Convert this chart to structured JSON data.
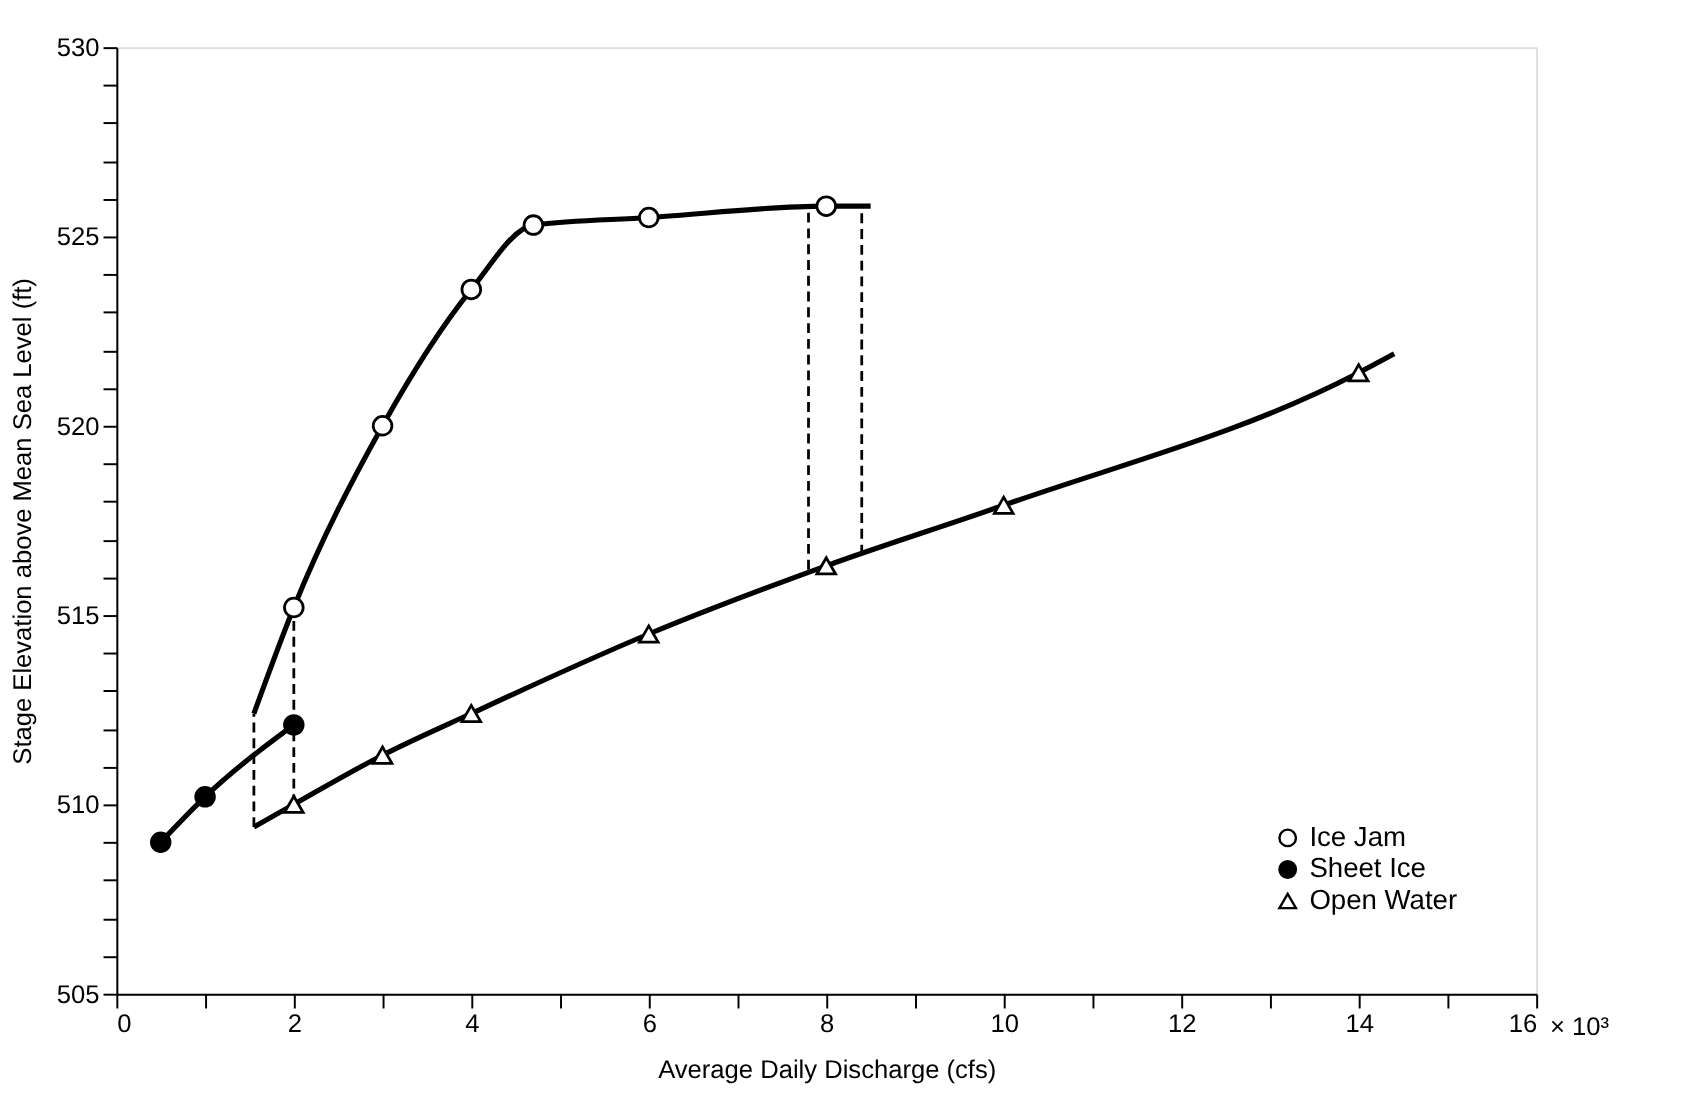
{
  "chart_data": {
    "type": "scatter",
    "xlabel": "Average Daily Discharge (cfs)",
    "ylabel": "Stage Elevation above Mean Sea Level (ft)",
    "xlim": [
      0,
      16
    ],
    "ylim": [
      505,
      530
    ],
    "xticks": [
      0,
      {
        "value": 1,
        "label": null
      },
      2,
      {
        "value": 3,
        "label": null
      },
      4,
      {
        "value": 5,
        "label": null
      },
      6,
      {
        "value": 7,
        "label": null
      },
      8,
      {
        "value": 9,
        "label": null
      },
      10,
      {
        "value": 11,
        "label": null
      },
      12,
      {
        "value": 13,
        "label": null
      },
      14,
      {
        "value": 15,
        "label": null
      },
      16
    ],
    "yticks": [
      505,
      {
        "value": 506,
        "label": null
      },
      {
        "value": 507,
        "label": null
      },
      {
        "value": 508,
        "label": null
      },
      {
        "value": 509,
        "label": null
      },
      510,
      {
        "value": 511,
        "label": null
      },
      {
        "value": 512,
        "label": null
      },
      {
        "value": 513,
        "label": null
      },
      {
        "value": 514,
        "label": null
      },
      515,
      {
        "value": 516,
        "label": null
      },
      {
        "value": 517,
        "label": null
      },
      {
        "value": 518,
        "label": null
      },
      {
        "value": 519,
        "label": null
      },
      520,
      {
        "value": 521,
        "label": null
      },
      {
        "value": 522,
        "label": null
      },
      {
        "value": 523,
        "label": null
      },
      {
        "value": 524,
        "label": null
      },
      525,
      {
        "value": 526,
        "label": null
      },
      {
        "value": 527,
        "label": null
      },
      {
        "value": 528,
        "label": null
      },
      {
        "value": 529,
        "label": null
      },
      530
    ],
    "grid": false,
    "legend": "bottom right",
    "series": [
      {
        "type": "line",
        "color": "#000000",
        "line_style": "solid",
        "x": [
          1.55,
          2,
          3,
          4,
          4.7,
          6,
          8,
          8.5
        ],
        "values": [
          512.4,
          515.2,
          520.0,
          523.6,
          525.3,
          525.5,
          525.8,
          525.8
        ]
      },
      {
        "type": "line",
        "color": "#000000",
        "line_style": "solid",
        "x": [
          0.5,
          1,
          2
        ],
        "values": [
          509.0,
          510.2,
          512.1
        ]
      },
      {
        "type": "line",
        "color": "#000000",
        "line_style": "solid",
        "x": [
          1.55,
          2,
          3,
          4,
          6,
          8,
          10,
          14,
          14.4
        ],
        "values": [
          509.4,
          510.0,
          511.3,
          512.4,
          514.5,
          516.3,
          517.9,
          521.4,
          521.9
        ]
      },
      {
        "type": "line",
        "color": "#000000",
        "line_style": "dashed",
        "x": [
          1.55,
          1.55
        ],
        "values": [
          509.4,
          512.4
        ]
      },
      {
        "type": "line",
        "color": "#000000",
        "line_style": "dashed",
        "x": [
          2,
          2
        ],
        "values": [
          510.0,
          515.2
        ]
      },
      {
        "type": "line",
        "color": "#000000",
        "line_style": "dashed",
        "x": [
          7.8,
          7.8
        ],
        "values": [
          516.2,
          525.8
        ]
      },
      {
        "type": "line",
        "color": "#000000",
        "line_style": "dashed",
        "x": [
          8.4,
          8.4
        ],
        "values": [
          516.6,
          525.8
        ]
      },
      {
        "name": "Ice Jam",
        "marker": "circle",
        "color": "#ffffff",
        "x": [
          2,
          3,
          4,
          4.7,
          6,
          8
        ],
        "values": [
          515.2,
          520.0,
          523.6,
          525.3,
          525.5,
          525.8
        ]
      },
      {
        "name": "Sheet Ice",
        "marker": "circle",
        "color": "#000000",
        "x": [
          0.5,
          1,
          2
        ],
        "values": [
          509.0,
          510.2,
          512.1
        ]
      },
      {
        "name": "Open Water",
        "marker": "triangle",
        "color": "#ffffff",
        "x": [
          2,
          3,
          4,
          6,
          8,
          10,
          14
        ],
        "values": [
          510.0,
          511.3,
          512.4,
          514.5,
          516.3,
          517.9,
          521.4
        ]
      }
    ],
    "annotations": [
      "× 10³"
    ]
  }
}
